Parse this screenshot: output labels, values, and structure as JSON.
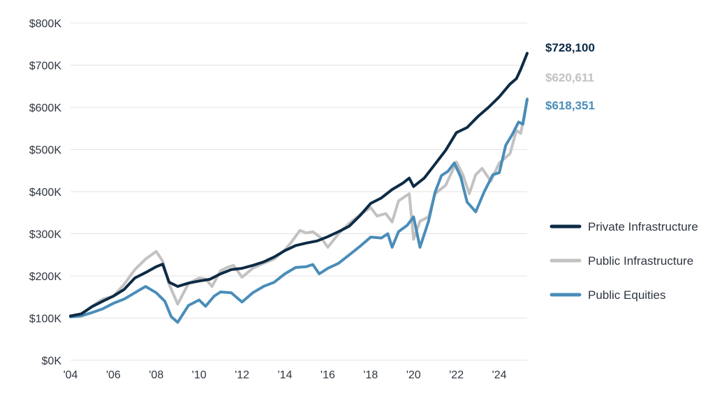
{
  "chart_data": {
    "type": "line",
    "title": "",
    "xlabel": "",
    "ylabel": "",
    "xlim": [
      2004.0,
      2025.3
    ],
    "ylim": [
      0,
      800000
    ],
    "grid": "horizontal",
    "legend_position": "right",
    "y_ticks": [
      {
        "value": 0,
        "label": "$0K"
      },
      {
        "value": 100000,
        "label": "$100K"
      },
      {
        "value": 200000,
        "label": "$200K"
      },
      {
        "value": 300000,
        "label": "$300K"
      },
      {
        "value": 400000,
        "label": "$400K"
      },
      {
        "value": 500000,
        "label": "$500K"
      },
      {
        "value": 600000,
        "label": "$600K"
      },
      {
        "value": 700000,
        "label": "$700K"
      },
      {
        "value": 800000,
        "label": "$800K"
      }
    ],
    "x_ticks": [
      {
        "value": 2004,
        "label": "'04"
      },
      {
        "value": 2006,
        "label": "'06"
      },
      {
        "value": 2008,
        "label": "'08"
      },
      {
        "value": 2010,
        "label": "'10"
      },
      {
        "value": 2012,
        "label": "'12"
      },
      {
        "value": 2014,
        "label": "'14"
      },
      {
        "value": 2016,
        "label": "'16"
      },
      {
        "value": 2018,
        "label": "'18"
      },
      {
        "value": 2020,
        "label": "'20"
      },
      {
        "value": 2022,
        "label": "'22"
      },
      {
        "value": 2024,
        "label": "'24"
      }
    ],
    "series": [
      {
        "name": "Private Infrastructure",
        "color": "#0d2b45",
        "end_label": "$728,100",
        "x": [
          2004.0,
          2004.5,
          2005.0,
          2005.5,
          2006.0,
          2006.5,
          2007.0,
          2007.5,
          2008.0,
          2008.3,
          2008.6,
          2009.0,
          2009.5,
          2010.0,
          2010.5,
          2011.0,
          2011.5,
          2012.0,
          2012.5,
          2013.0,
          2013.5,
          2014.0,
          2014.5,
          2015.0,
          2015.5,
          2016.0,
          2016.5,
          2017.0,
          2017.5,
          2018.0,
          2018.5,
          2019.0,
          2019.5,
          2019.8,
          2020.0,
          2020.5,
          2021.0,
          2021.5,
          2022.0,
          2022.5,
          2023.0,
          2023.5,
          2024.0,
          2024.5,
          2024.8,
          2025.0,
          2025.3
        ],
        "y": [
          105000,
          110000,
          127000,
          140000,
          152000,
          168000,
          195000,
          208000,
          222000,
          228000,
          185000,
          175000,
          183000,
          188000,
          192000,
          205000,
          215000,
          218000,
          225000,
          233000,
          245000,
          260000,
          272000,
          278000,
          283000,
          293000,
          305000,
          318000,
          343000,
          372000,
          385000,
          405000,
          420000,
          432000,
          412000,
          432000,
          465000,
          498000,
          540000,
          552000,
          578000,
          600000,
          625000,
          655000,
          668000,
          690000,
          728100
        ]
      },
      {
        "name": "Public Infrastructure",
        "color": "#c2c2c2",
        "end_label": "$620,611",
        "x": [
          2004.0,
          2004.5,
          2005.0,
          2005.5,
          2006.0,
          2006.5,
          2007.0,
          2007.5,
          2008.0,
          2008.3,
          2008.6,
          2009.0,
          2009.5,
          2010.0,
          2010.3,
          2010.6,
          2011.0,
          2011.3,
          2011.6,
          2012.0,
          2012.5,
          2013.0,
          2013.5,
          2014.0,
          2014.3,
          2014.7,
          2015.0,
          2015.3,
          2015.7,
          2016.0,
          2016.5,
          2017.0,
          2017.5,
          2018.0,
          2018.3,
          2018.7,
          2019.0,
          2019.3,
          2019.8,
          2020.0,
          2020.3,
          2020.7,
          2021.0,
          2021.5,
          2022.0,
          2022.3,
          2022.6,
          2022.9,
          2023.2,
          2023.6,
          2024.0,
          2024.5,
          2024.8,
          2025.0,
          2025.3
        ],
        "y": [
          103000,
          108000,
          128000,
          145000,
          152000,
          180000,
          215000,
          240000,
          258000,
          235000,
          180000,
          133000,
          182000,
          195000,
          193000,
          175000,
          212000,
          220000,
          225000,
          197000,
          218000,
          230000,
          240000,
          262000,
          280000,
          308000,
          302000,
          305000,
          290000,
          268000,
          300000,
          325000,
          345000,
          362000,
          342000,
          348000,
          328000,
          378000,
          395000,
          287000,
          330000,
          340000,
          395000,
          415000,
          470000,
          440000,
          395000,
          440000,
          455000,
          425000,
          468000,
          490000,
          545000,
          538000,
          620611
        ]
      },
      {
        "name": "Public Equities",
        "color": "#4a8db9",
        "end_label": "$618,351",
        "x": [
          2004.0,
          2004.5,
          2005.0,
          2005.5,
          2006.0,
          2006.5,
          2007.0,
          2007.5,
          2008.0,
          2008.4,
          2008.7,
          2009.0,
          2009.5,
          2010.0,
          2010.3,
          2010.7,
          2011.0,
          2011.5,
          2012.0,
          2012.5,
          2013.0,
          2013.5,
          2014.0,
          2014.5,
          2015.0,
          2015.3,
          2015.6,
          2016.0,
          2016.5,
          2017.0,
          2017.5,
          2018.0,
          2018.5,
          2018.8,
          2019.0,
          2019.3,
          2019.7,
          2020.0,
          2020.3,
          2020.7,
          2021.0,
          2021.3,
          2021.6,
          2021.9,
          2022.2,
          2022.5,
          2022.9,
          2023.3,
          2023.7,
          2024.0,
          2024.3,
          2024.6,
          2024.9,
          2025.1,
          2025.3
        ],
        "y": [
          103000,
          105000,
          113000,
          122000,
          135000,
          145000,
          160000,
          175000,
          160000,
          140000,
          103000,
          90000,
          130000,
          143000,
          128000,
          152000,
          162000,
          160000,
          138000,
          160000,
          175000,
          185000,
          205000,
          220000,
          222000,
          227000,
          205000,
          218000,
          230000,
          250000,
          270000,
          292000,
          290000,
          300000,
          268000,
          305000,
          320000,
          340000,
          268000,
          330000,
          398000,
          438000,
          448000,
          468000,
          435000,
          375000,
          352000,
          400000,
          440000,
          445000,
          510000,
          535000,
          565000,
          560000,
          618351
        ]
      }
    ]
  }
}
